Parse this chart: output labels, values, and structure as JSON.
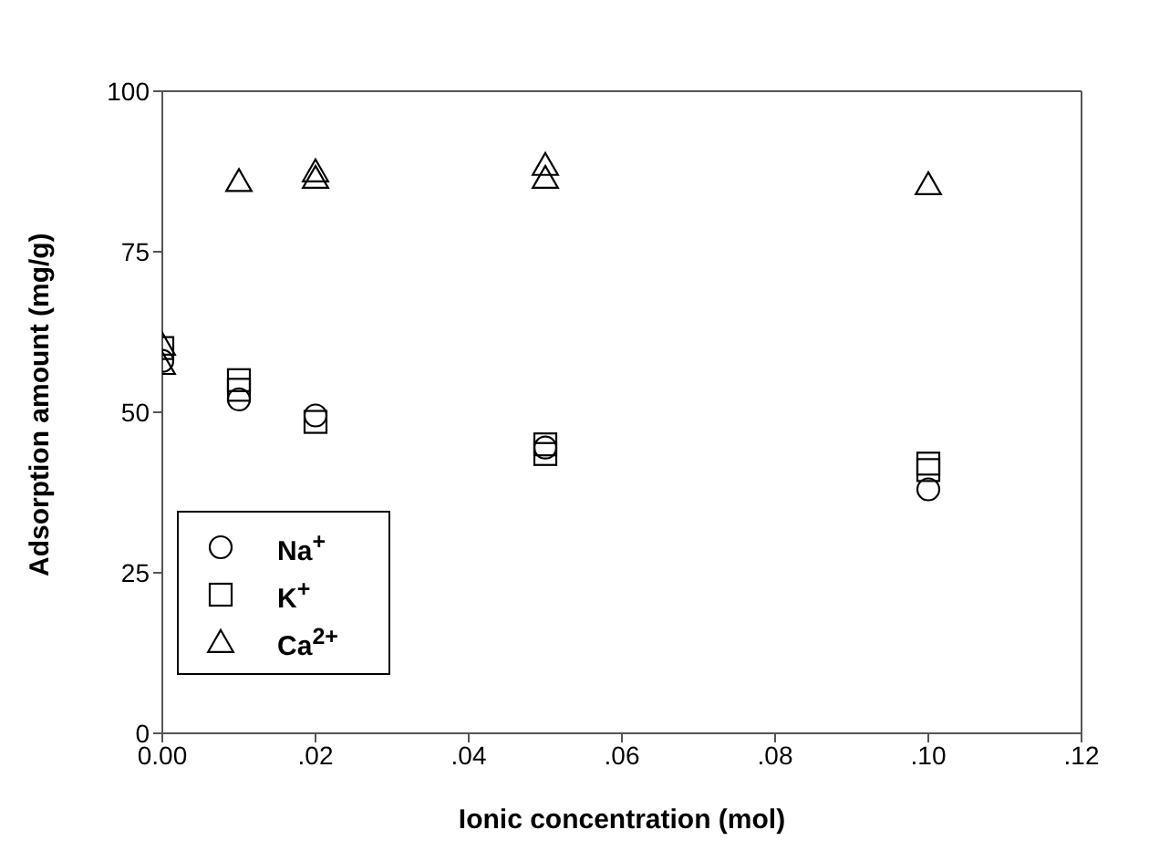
{
  "chart_data": {
    "type": "scatter",
    "xlabel": "Ionic concentration (mol)",
    "ylabel": "Adsorption amount (mg/g)",
    "xlim": [
      0,
      0.12
    ],
    "xticks": [
      {
        "value": 0,
        "label": "0.00"
      },
      {
        "value": 0.02,
        "label": ".02"
      },
      {
        "value": 0.04,
        "label": ".04"
      },
      {
        "value": 0.06,
        "label": ".06"
      },
      {
        "value": 0.08,
        "label": ".08"
      },
      {
        "value": 0.1,
        "label": ".10"
      },
      {
        "value": 0.12,
        "label": ".12"
      }
    ],
    "ylim": [
      0,
      100
    ],
    "yticks": [
      0,
      25,
      50,
      75,
      100
    ],
    "legend": "bottom left",
    "series": [
      {
        "name": "Na$^{+}$",
        "color": "#000000",
        "marker": "circle",
        "x": [
          0,
          0.01,
          0.02,
          0.05,
          0.1
        ],
        "values": [
          58,
          52,
          49.5,
          44.5,
          38
        ]
      },
      {
        "name": "K$^{+}$",
        "color": "#000000",
        "marker": "square",
        "x": [
          0,
          0.01,
          0.01,
          0.02,
          0.05,
          0.05,
          0.1,
          0.1
        ],
        "values": [
          60,
          55,
          53.5,
          48.5,
          45,
          43.5,
          42,
          41
        ]
      },
      {
        "name": "Ca$^{2+}$",
        "color": "#000000",
        "marker": "triangle",
        "x": [
          0,
          0,
          0.01,
          0.02,
          0.02,
          0.05,
          0.05,
          0.1
        ],
        "values": [
          60.5,
          57.5,
          86,
          87.5,
          86.5,
          88.5,
          86.5,
          85.5
        ]
      }
    ]
  }
}
